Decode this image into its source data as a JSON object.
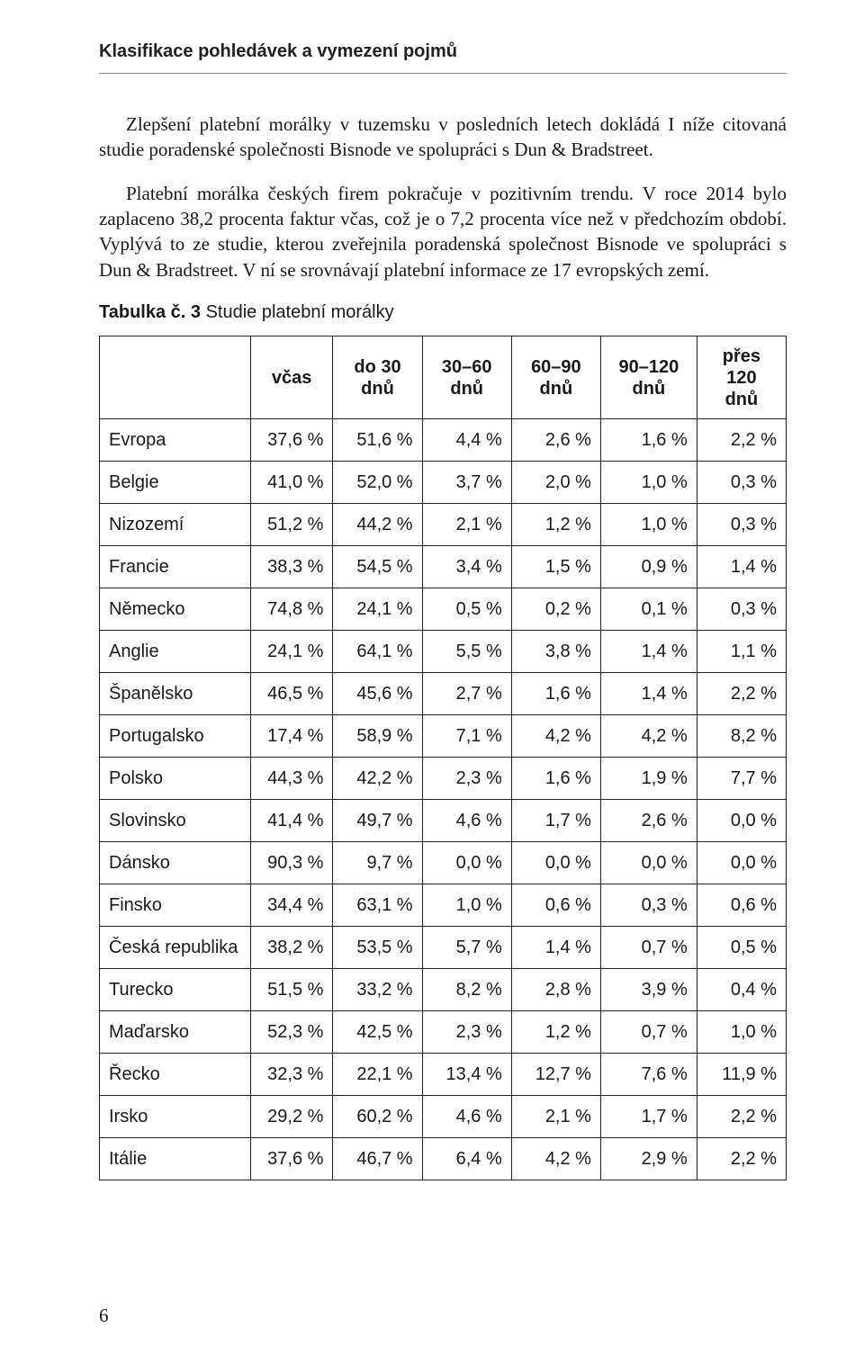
{
  "runningHead": "Klasifikace pohledávek a vymezení pojmů",
  "paragraphs": [
    "Zlepšení platební morálky v tuzemsku v posledních letech dokládá I níže citovaná studie poradenské společnosti Bisnode ve spolupráci s Dun & Bradstreet.",
    "Platební morálka českých firem pokračuje v pozitivním trendu. V roce 2014 bylo zaplaceno 38,2 procenta faktur včas, což je o 7,2 procenta více než v předchozím období. Vyplývá to ze studie, kterou zveřejnila poradenská společnost Bisnode ve spolupráci s Dun & Bradstreet. V ní se srovnávají platební informace ze 17 evropských zemí."
  ],
  "tableCaption": {
    "bold": "Tabulka č. 3",
    "rest": " Studie platební morálky"
  },
  "table": {
    "columns": [
      "",
      "včas",
      "do 30 dnů",
      "30–60 dnů",
      "60–90 dnů",
      "90–120 dnů",
      "přes 120 dnů"
    ],
    "colWidthsPct": [
      22,
      12,
      13,
      13,
      13,
      14,
      13
    ],
    "rows": [
      [
        "Evropa",
        "37,6 %",
        "51,6 %",
        "4,4 %",
        "2,6 %",
        "1,6 %",
        "2,2 %"
      ],
      [
        "Belgie",
        "41,0 %",
        "52,0 %",
        "3,7 %",
        "2,0 %",
        "1,0 %",
        "0,3 %"
      ],
      [
        "Nizozemí",
        "51,2 %",
        "44,2 %",
        "2,1 %",
        "1,2 %",
        "1,0 %",
        "0,3 %"
      ],
      [
        "Francie",
        "38,3 %",
        "54,5 %",
        "3,4 %",
        "1,5 %",
        "0,9 %",
        "1,4 %"
      ],
      [
        "Německo",
        "74,8 %",
        "24,1 %",
        "0,5 %",
        "0,2 %",
        "0,1 %",
        "0,3 %"
      ],
      [
        "Anglie",
        "24,1 %",
        "64,1 %",
        "5,5 %",
        "3,8 %",
        "1,4 %",
        "1,1 %"
      ],
      [
        "Španělsko",
        "46,5 %",
        "45,6 %",
        "2,7 %",
        "1,6 %",
        "1,4 %",
        "2,2 %"
      ],
      [
        "Portugalsko",
        "17,4 %",
        "58,9 %",
        "7,1 %",
        "4,2 %",
        "4,2 %",
        "8,2 %"
      ],
      [
        "Polsko",
        "44,3 %",
        "42,2 %",
        "2,3 %",
        "1,6 %",
        "1,9 %",
        "7,7 %"
      ],
      [
        "Slovinsko",
        "41,4 %",
        "49,7 %",
        "4,6 %",
        "1,7 %",
        "2,6 %",
        "0,0 %"
      ],
      [
        "Dánsko",
        "90,3 %",
        "9,7 %",
        "0,0 %",
        "0,0 %",
        "0,0 %",
        "0,0 %"
      ],
      [
        "Finsko",
        "34,4 %",
        "63,1 %",
        "1,0 %",
        "0,6 %",
        "0,3 %",
        "0,6 %"
      ],
      [
        "Česká republika",
        "38,2 %",
        "53,5 %",
        "5,7 %",
        "1,4 %",
        "0,7 %",
        "0,5 %"
      ],
      [
        "Turecko",
        "51,5 %",
        "33,2 %",
        "8,2 %",
        "2,8 %",
        "3,9 %",
        "0,4 %"
      ],
      [
        "Maďarsko",
        "52,3 %",
        "42,5 %",
        "2,3 %",
        "1,2 %",
        "0,7 %",
        "1,0 %"
      ],
      [
        "Řecko",
        "32,3 %",
        "22,1 %",
        "13,4 %",
        "12,7 %",
        "7,6 %",
        "11,9 %"
      ],
      [
        "Irsko",
        "29,2 %",
        "60,2 %",
        "4,6 %",
        "2,1 %",
        "1,7 %",
        "2,2 %"
      ],
      [
        "Itálie",
        "37,6 %",
        "46,7 %",
        "6,4 %",
        "4,2 %",
        "2,9 %",
        "2,2 %"
      ]
    ]
  },
  "pageNumber": "6",
  "style": {
    "bodyFontSizePt": 16,
    "tableFontSizePt": 15,
    "headerFontWeight": 700,
    "borderColor": "#222222",
    "textColor": "#1a1a1a",
    "backgroundColor": "#ffffff"
  }
}
